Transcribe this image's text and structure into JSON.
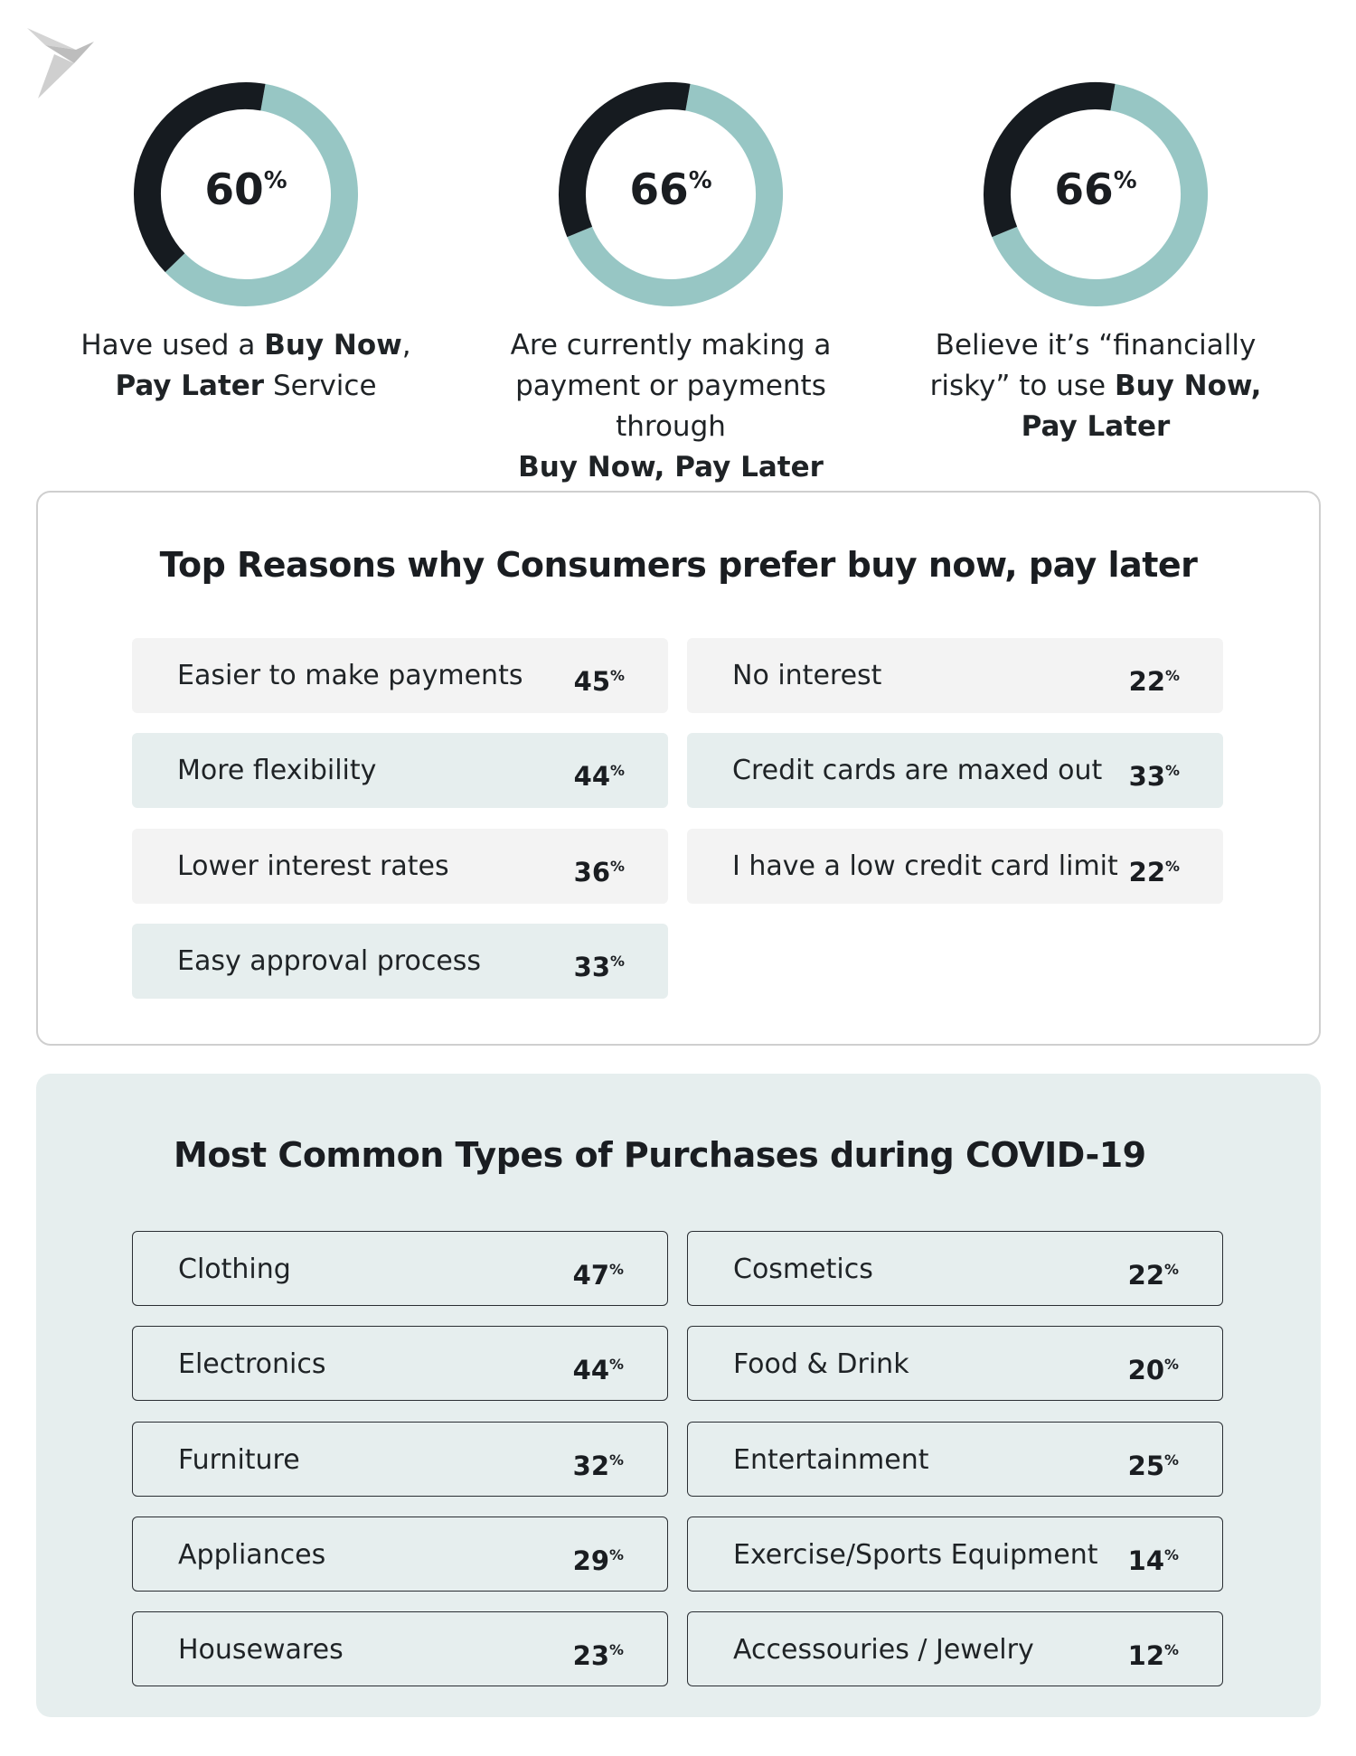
{
  "stats": [
    {
      "value": 60,
      "unit": "%",
      "caption": [
        [
          {
            "text": "Have used a "
          },
          {
            "text": "Buy Now",
            "bold": true
          },
          {
            "text": ","
          }
        ],
        [
          {
            "text": "Pay Later",
            "bold": true
          },
          {
            "text": " Service"
          }
        ]
      ]
    },
    {
      "value": 66,
      "unit": "%",
      "caption": [
        [
          {
            "text": "Are currently making a"
          }
        ],
        [
          {
            "text": "payment or payments through"
          }
        ],
        [
          {
            "text": "Buy Now, Pay Later",
            "bold": true
          }
        ]
      ]
    },
    {
      "value": 66,
      "unit": "%",
      "caption": [
        [
          {
            "text": "Believe it’s “financially"
          }
        ],
        [
          {
            "text": "risky” to use "
          },
          {
            "text": "Buy Now,",
            "bold": true
          }
        ],
        [
          {
            "text": "Pay Later",
            "bold": true
          }
        ]
      ]
    }
  ],
  "reasons": {
    "title": "Top Reasons why Consumers prefer buy now, pay later",
    "items": [
      {
        "label": "Easier to make payments",
        "value": 45,
        "unit": "%"
      },
      {
        "label": "More flexibility",
        "value": 44,
        "unit": "%"
      },
      {
        "label": "Lower interest rates",
        "value": 36,
        "unit": "%"
      },
      {
        "label": "Easy approval process",
        "value": 33,
        "unit": "%"
      },
      {
        "label": "No interest",
        "value": 22,
        "unit": "%"
      },
      {
        "label": "Credit cards are maxed out",
        "value": 33,
        "unit": "%"
      },
      {
        "label": "I have a low credit card limit",
        "value": 22,
        "unit": "%"
      }
    ]
  },
  "purchases": {
    "title": "Most Common Types of Purchases during COVID-19",
    "items": [
      {
        "label": "Clothing",
        "value": 47,
        "unit": "%"
      },
      {
        "label": "Electronics",
        "value": 44,
        "unit": "%"
      },
      {
        "label": "Furniture",
        "value": 32,
        "unit": "%"
      },
      {
        "label": "Appliances",
        "value": 29,
        "unit": "%"
      },
      {
        "label": "Housewares",
        "value": 23,
        "unit": "%"
      },
      {
        "label": "Cosmetics",
        "value": 22,
        "unit": "%"
      },
      {
        "label": "Food & Drink",
        "value": 20,
        "unit": "%"
      },
      {
        "label": "Entertainment",
        "value": 25,
        "unit": "%"
      },
      {
        "label": "Exercise/Sports Equipment",
        "value": 14,
        "unit": "%"
      },
      {
        "label": "Accessouries / Jewelry",
        "value": 12,
        "unit": "%"
      }
    ]
  }
}
